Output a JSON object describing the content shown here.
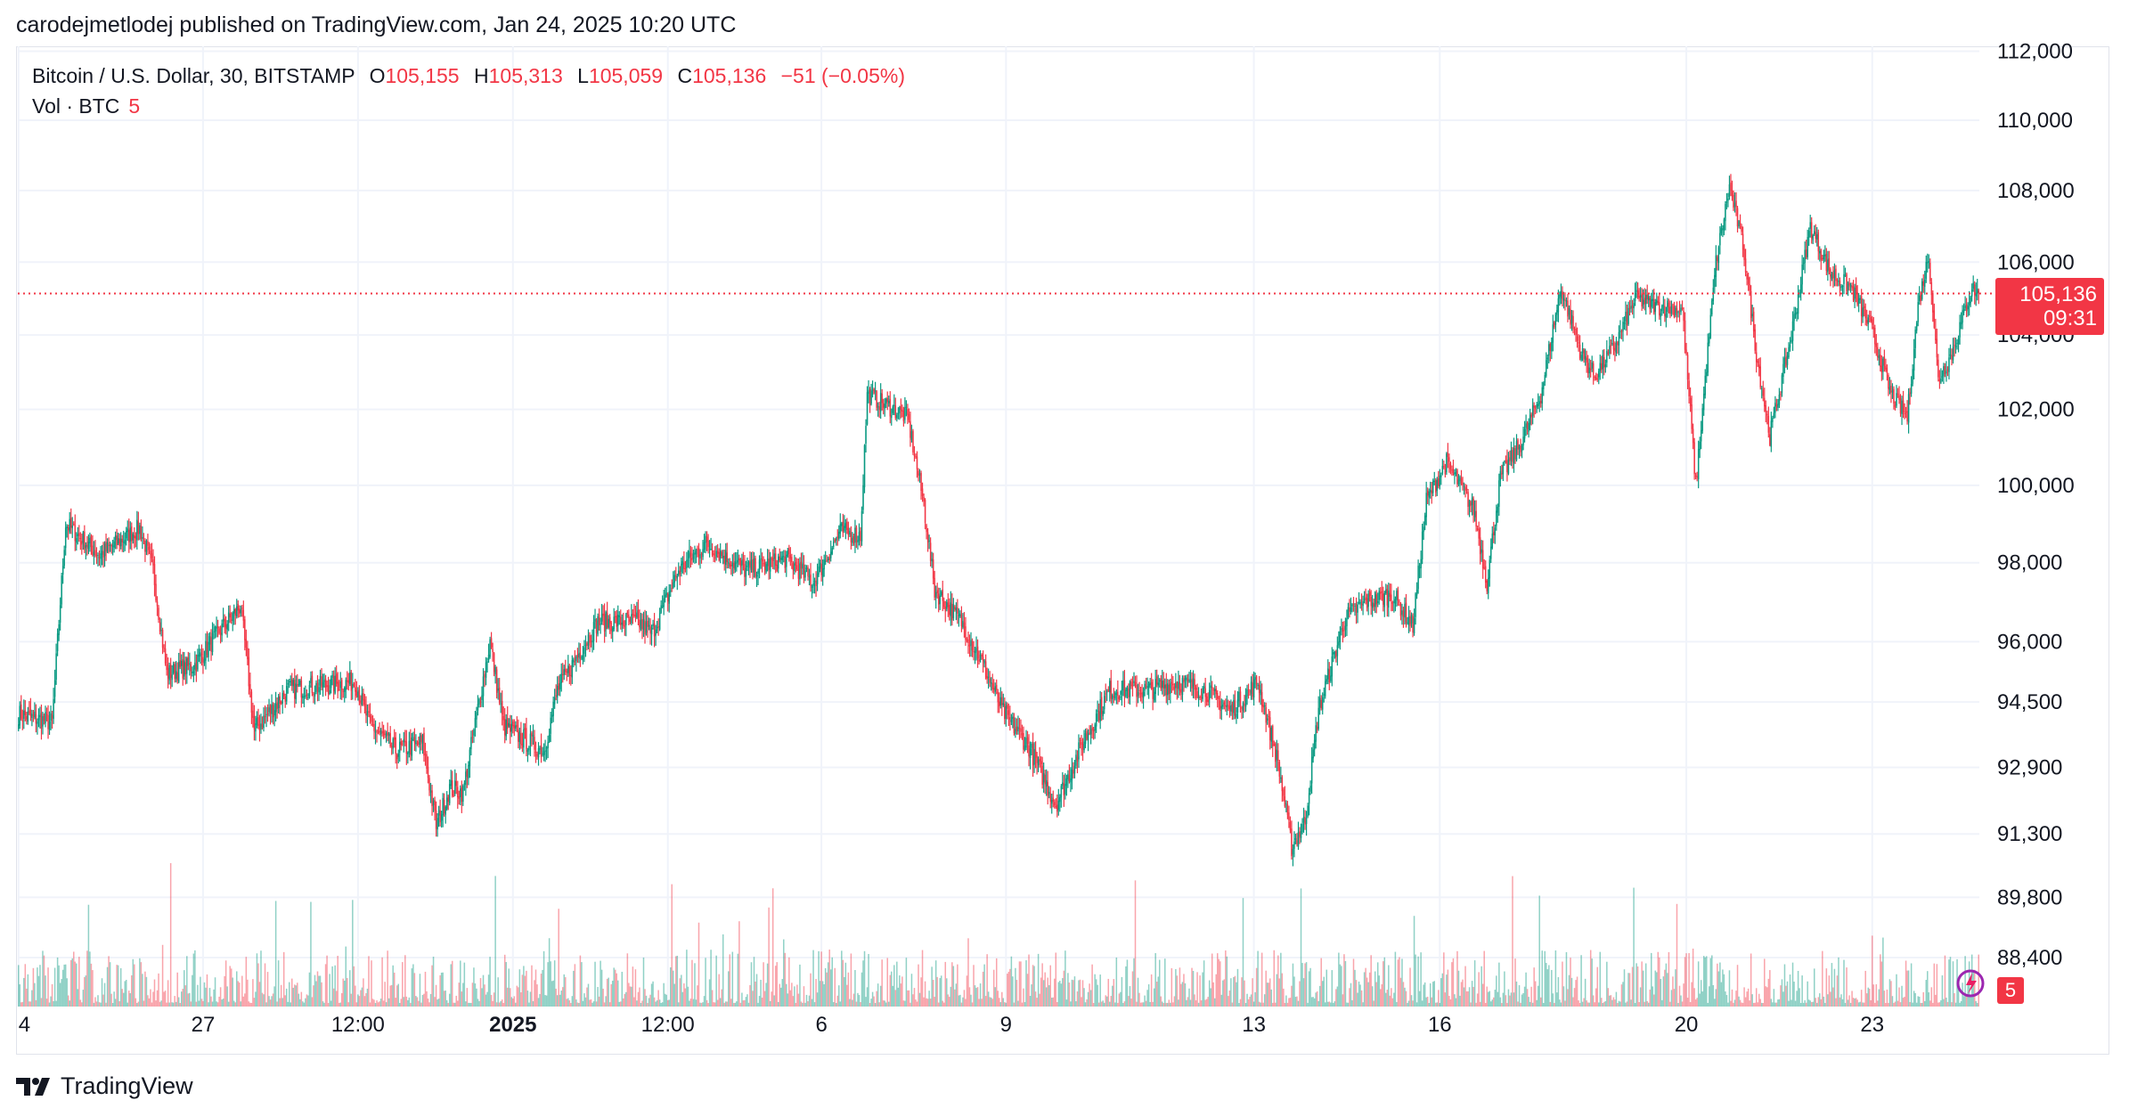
{
  "publish_line": "carodejmetlodej published on TradingView.com, Jan 24, 2025 10:20 UTC",
  "legend": {
    "symbol": "Bitcoin / U.S. Dollar, 30, BITSTAMP",
    "open_label": "O",
    "open": "105,155",
    "high_label": "H",
    "high": "105,313",
    "low_label": "L",
    "low": "105,059",
    "close_label": "C",
    "close": "105,136",
    "change": "−51 (−0.05%)",
    "volume_label": "Vol · BTC",
    "volume": "5"
  },
  "price_tag": {
    "price": "105,136",
    "countdown": "09:31"
  },
  "volume_tag": "5",
  "brand": "TradingView",
  "colors": {
    "up": "#089981",
    "down": "#f23645",
    "grid": "#f0f3fa",
    "axis_text": "#131722",
    "price_line": "#f23645"
  },
  "chart_data": {
    "type": "candlestick",
    "symbol": "BTCUSD",
    "exchange": "BITSTAMP",
    "interval_minutes": 30,
    "price_scale": "log",
    "y_ticks": [
      112000,
      110000,
      108000,
      106000,
      104000,
      102000,
      100000,
      98000,
      96000,
      94500,
      92900,
      91300,
      89800,
      88400
    ],
    "y_tick_labels": [
      "112,000",
      "110,000",
      "108,000",
      "106,000",
      "104,000",
      "102,000",
      "100,000",
      "98,000",
      "96,000",
      "94,500",
      "92,900",
      "91,300",
      "89,800",
      "88,400"
    ],
    "x_ticks": [
      "4",
      "27",
      "12:00",
      "2025",
      "12:00",
      "6",
      "9",
      "13",
      "16",
      "20",
      "23"
    ],
    "x_tick_bold": [
      false,
      false,
      false,
      true,
      false,
      false,
      false,
      false,
      false,
      false,
      false
    ],
    "x_tick_index": [
      0,
      137,
      252,
      367,
      482,
      596,
      733,
      917,
      1055,
      1238,
      1376
    ],
    "current_price": 105136,
    "close_path": [
      [
        0,
        94200
      ],
      [
        25,
        94000
      ],
      [
        35,
        99000
      ],
      [
        60,
        98200
      ],
      [
        90,
        98900
      ],
      [
        100,
        97800
      ],
      [
        110,
        95200
      ],
      [
        130,
        95400
      ],
      [
        150,
        96300
      ],
      [
        165,
        96900
      ],
      [
        175,
        93800
      ],
      [
        200,
        94800
      ],
      [
        250,
        95000
      ],
      [
        260,
        94000
      ],
      [
        280,
        93300
      ],
      [
        300,
        93500
      ],
      [
        310,
        91500
      ],
      [
        320,
        92400
      ],
      [
        330,
        92300
      ],
      [
        350,
        96000
      ],
      [
        360,
        93900
      ],
      [
        390,
        93300
      ],
      [
        400,
        94800
      ],
      [
        430,
        96500
      ],
      [
        460,
        96500
      ],
      [
        470,
        96200
      ],
      [
        490,
        97800
      ],
      [
        510,
        98500
      ],
      [
        540,
        97800
      ],
      [
        570,
        98100
      ],
      [
        590,
        97500
      ],
      [
        610,
        98800
      ],
      [
        625,
        98700
      ],
      [
        630,
        102400
      ],
      [
        640,
        102200
      ],
      [
        660,
        101800
      ],
      [
        672,
        99500
      ],
      [
        680,
        97300
      ],
      [
        700,
        96500
      ],
      [
        715,
        95500
      ],
      [
        730,
        94300
      ],
      [
        750,
        93400
      ],
      [
        770,
        92000
      ],
      [
        790,
        93500
      ],
      [
        810,
        94800
      ],
      [
        840,
        94800
      ],
      [
        860,
        95000
      ],
      [
        880,
        94800
      ],
      [
        900,
        94300
      ],
      [
        920,
        95000
      ],
      [
        935,
        93000
      ],
      [
        945,
        91000
      ],
      [
        955,
        91600
      ],
      [
        965,
        94300
      ],
      [
        985,
        96600
      ],
      [
        1000,
        97000
      ],
      [
        1020,
        97200
      ],
      [
        1035,
        96400
      ],
      [
        1045,
        99600
      ],
      [
        1060,
        100600
      ],
      [
        1080,
        99400
      ],
      [
        1090,
        97500
      ],
      [
        1100,
        100200
      ],
      [
        1115,
        101100
      ],
      [
        1130,
        102400
      ],
      [
        1145,
        105300
      ],
      [
        1160,
        103500
      ],
      [
        1170,
        102900
      ],
      [
        1185,
        103700
      ],
      [
        1200,
        105000
      ],
      [
        1215,
        104800
      ],
      [
        1235,
        104700
      ],
      [
        1245,
        100000
      ],
      [
        1260,
        106000
      ],
      [
        1270,
        108100
      ],
      [
        1280,
        106500
      ],
      [
        1290,
        103500
      ],
      [
        1300,
        101300
      ],
      [
        1315,
        103800
      ],
      [
        1330,
        107000
      ],
      [
        1345,
        105700
      ],
      [
        1360,
        105300
      ],
      [
        1375,
        104200
      ],
      [
        1390,
        102400
      ],
      [
        1402,
        101800
      ],
      [
        1410,
        104800
      ],
      [
        1418,
        106200
      ],
      [
        1425,
        102800
      ],
      [
        1435,
        103500
      ],
      [
        1450,
        105300
      ],
      [
        1455,
        105136
      ]
    ]
  }
}
